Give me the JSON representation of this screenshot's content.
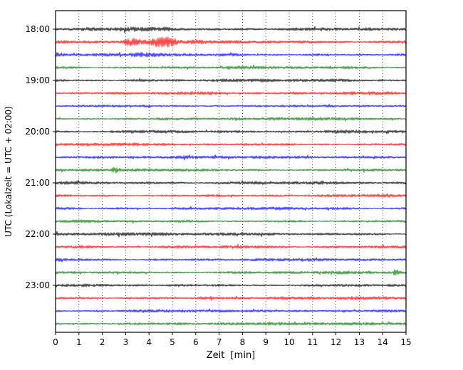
{
  "chart_data": {
    "type": "line",
    "kind": "helicorder-seismogram-drumplot",
    "title": "",
    "xlabel": "Zeit  [min]",
    "ylabel": "UTC (Lokalzeit = UTC + 02:00)",
    "xlim": [
      0,
      15
    ],
    "x_ticks": [
      0,
      1,
      2,
      3,
      4,
      5,
      6,
      7,
      8,
      9,
      10,
      11,
      12,
      13,
      14,
      15
    ],
    "minutes_per_row": 15,
    "grid": {
      "vertical_dotted": true,
      "horizontal": false
    },
    "legend": "none",
    "hour_tick_labels": [
      "18:00",
      "19:00",
      "20:00",
      "21:00",
      "22:00",
      "23:00"
    ],
    "color_cycle": [
      "#000000",
      "#ff0000",
      "#0000ff",
      "#008000"
    ],
    "traces": [
      {
        "start_time": "18:00",
        "color": "#000000",
        "base_amp": 2.3,
        "events": [
          {
            "peak_min": 3.2,
            "rise": 1.2,
            "decay": 1.5,
            "mult": 1.5
          }
        ]
      },
      {
        "start_time": "18:15",
        "color": "#ff0000",
        "base_amp": 2.3,
        "events": [
          {
            "peak_min": 3.3,
            "rise": 0.25,
            "decay": 0.3,
            "mult": 3.2
          },
          {
            "peak_min": 4.35,
            "rise": 0.3,
            "decay": 0.55,
            "mult": 6.0
          },
          {
            "peak_min": 5.0,
            "rise": 0.2,
            "decay": 0.8,
            "mult": 3.0
          }
        ]
      },
      {
        "start_time": "18:30",
        "color": "#0000ff",
        "base_amp": 2.3,
        "events": [
          {
            "peak_min": 4.2,
            "rise": 0.6,
            "decay": 0.8,
            "mult": 1.4
          }
        ]
      },
      {
        "start_time": "18:45",
        "color": "#008000",
        "base_amp": 2.2,
        "events": []
      },
      {
        "start_time": "19:00",
        "color": "#000000",
        "base_amp": 2.3,
        "events": []
      },
      {
        "start_time": "19:15",
        "color": "#ff0000",
        "base_amp": 2.3,
        "events": []
      },
      {
        "start_time": "19:30",
        "color": "#0000ff",
        "base_amp": 1.7,
        "events": []
      },
      {
        "start_time": "19:45",
        "color": "#008000",
        "base_amp": 2.2,
        "events": []
      },
      {
        "start_time": "20:00",
        "color": "#000000",
        "base_amp": 2.3,
        "events": []
      },
      {
        "start_time": "20:15",
        "color": "#ff0000",
        "base_amp": 2.3,
        "events": []
      },
      {
        "start_time": "20:30",
        "color": "#0000ff",
        "base_amp": 2.1,
        "events": []
      },
      {
        "start_time": "20:45",
        "color": "#008000",
        "base_amp": 2.2,
        "events": [
          {
            "peak_min": 2.55,
            "rise": 0.08,
            "decay": 0.12,
            "mult": 3.5
          }
        ]
      },
      {
        "start_time": "21:00",
        "color": "#000000",
        "base_amp": 2.3,
        "events": []
      },
      {
        "start_time": "21:15",
        "color": "#ff0000",
        "base_amp": 2.3,
        "events": []
      },
      {
        "start_time": "21:30",
        "color": "#0000ff",
        "base_amp": 2.2,
        "events": []
      },
      {
        "start_time": "21:45",
        "color": "#008000",
        "base_amp": 2.2,
        "events": []
      },
      {
        "start_time": "22:00",
        "color": "#000000",
        "base_amp": 2.3,
        "events": []
      },
      {
        "start_time": "22:15",
        "color": "#ff0000",
        "base_amp": 2.3,
        "events": []
      },
      {
        "start_time": "22:30",
        "color": "#0000ff",
        "base_amp": 2.2,
        "events": []
      },
      {
        "start_time": "22:45",
        "color": "#008000",
        "base_amp": 2.2,
        "events": [
          {
            "peak_min": 14.55,
            "rise": 0.08,
            "decay": 0.12,
            "mult": 3.0
          }
        ]
      },
      {
        "start_time": "23:00",
        "color": "#000000",
        "base_amp": 2.3,
        "events": []
      },
      {
        "start_time": "23:15",
        "color": "#ff0000",
        "base_amp": 2.3,
        "events": []
      },
      {
        "start_time": "23:30",
        "color": "#0000ff",
        "base_amp": 2.2,
        "events": []
      },
      {
        "start_time": "23:45",
        "color": "#008000",
        "base_amp": 2.2,
        "events": []
      }
    ]
  }
}
